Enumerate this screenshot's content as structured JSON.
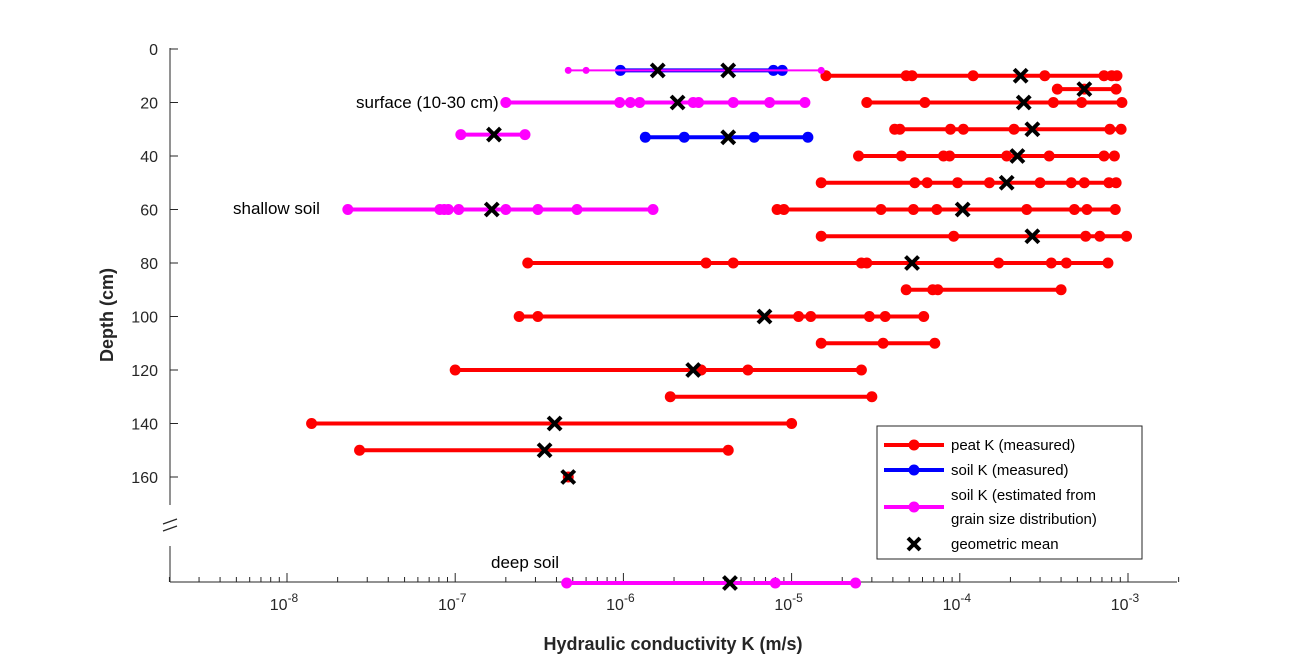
{
  "chart_data": {
    "type": "scatter",
    "xlabel": "Hydraulic conductivity K (m/s)",
    "ylabel": "Depth (cm)",
    "x_scale": "log",
    "xlim": [
      2e-09,
      0.002
    ],
    "ylim": [
      0,
      170
    ],
    "x_ticks": [
      1e-08,
      1e-07,
      1e-06,
      1e-05,
      0.0001,
      0.001
    ],
    "x_tick_labels": [
      {
        "base": "10",
        "exp": "-8"
      },
      {
        "base": "10",
        "exp": "-7"
      },
      {
        "base": "10",
        "exp": "-6"
      },
      {
        "base": "10",
        "exp": "-5"
      },
      {
        "base": "10",
        "exp": "-4"
      },
      {
        "base": "10",
        "exp": "-3"
      }
    ],
    "y_ticks": [
      0,
      20,
      40,
      60,
      80,
      100,
      120,
      140,
      160
    ],
    "y_tick_labels": [
      "0",
      "20",
      "40",
      "60",
      "80",
      "100",
      "120",
      "140",
      "160"
    ],
    "axis_break_symbol": "//",
    "legend_position": "bottom-right",
    "legend": [
      {
        "label": "peat K (measured)",
        "color": "#ff0000",
        "kind": "line"
      },
      {
        "label": "soil K (measured)",
        "color": "#0000ff",
        "kind": "line"
      },
      {
        "label": "soil K (estimated from",
        "label2": "grain size distribution)",
        "color": "#ff00ff",
        "kind": "line"
      },
      {
        "label": "geometric mean",
        "color": "#000000",
        "kind": "x"
      }
    ],
    "annotations": {
      "surface": "surface (10-30 cm)",
      "shallow": "shallow soil",
      "deep": "deep soil"
    },
    "series": [
      {
        "name": "peat K (measured)",
        "color": "#ff0000",
        "rows": [
          {
            "depth": 10,
            "points": [
              1.6e-05,
              4.8e-05,
              5.2e-05,
              0.00012,
              0.00032,
              0.00072,
              0.0008,
              0.00086
            ],
            "mean": 0.00023
          },
          {
            "depth": 15,
            "points": [
              0.00038,
              0.00055,
              0.00085
            ],
            "mean": 0.00055
          },
          {
            "depth": 20,
            "points": [
              2.8e-05,
              6.2e-05,
              0.00036,
              0.00053,
              0.00092
            ],
            "mean": 0.00024
          },
          {
            "depth": 30,
            "points": [
              4.1e-05,
              4.4e-05,
              8.8e-05,
              0.000105,
              0.00021,
              0.00078,
              0.00091
            ],
            "mean": 0.00027
          },
          {
            "depth": 40,
            "points": [
              2.5e-05,
              4.5e-05,
              8e-05,
              8.7e-05,
              0.00019,
              0.00034,
              0.00072,
              0.00083
            ],
            "mean": 0.00022
          },
          {
            "depth": 50,
            "points": [
              1.5e-05,
              5.4e-05,
              6.4e-05,
              9.7e-05,
              0.00015,
              0.0003,
              0.00046,
              0.00055,
              0.00077,
              0.00085
            ],
            "mean": 0.00019
          },
          {
            "depth": 60,
            "points": [
              8.2e-06,
              9e-06,
              3.4e-05,
              5.3e-05,
              7.3e-05,
              0.00025,
              0.00048,
              0.00057,
              0.00084
            ],
            "mean": 0.000104
          },
          {
            "depth": 70,
            "points": [
              1.5e-05,
              9.2e-05,
              0.00056,
              0.00068,
              0.00098
            ],
            "mean": 0.00027
          },
          {
            "depth": 80,
            "points": [
              2.7e-07,
              3.1e-06,
              4.5e-06,
              2.6e-05,
              2.8e-05,
              0.00017,
              0.00035,
              0.00043,
              0.00076
            ],
            "mean": 5.2e-05
          },
          {
            "depth": 90,
            "points": [
              4.8e-05,
              6.9e-05,
              7.4e-05,
              0.0004
            ],
            "mean": null
          },
          {
            "depth": 100,
            "points": [
              2.4e-07,
              3.1e-07,
              1.1e-05,
              1.3e-05,
              2.9e-05,
              3.6e-05,
              6.1e-05
            ],
            "mean": 6.9e-06
          },
          {
            "depth": 110,
            "points": [
              1.5e-05,
              3.5e-05,
              7.1e-05
            ],
            "mean": null
          },
          {
            "depth": 120,
            "points": [
              1e-07,
              2.9e-06,
              5.5e-06,
              2.6e-05
            ],
            "mean": 2.6e-06
          },
          {
            "depth": 130,
            "points": [
              1.9e-06,
              3e-05
            ],
            "mean": null
          },
          {
            "depth": 140,
            "points": [
              1.4e-08,
              1e-05
            ],
            "mean": 3.9e-07
          },
          {
            "depth": 150,
            "points": [
              2.7e-08,
              4.2e-06
            ],
            "mean": 3.4e-07
          },
          {
            "depth": 160,
            "points": [
              4.7e-07
            ],
            "mean": 4.7e-07
          }
        ]
      },
      {
        "name": "soil K (measured)",
        "color": "#0000ff",
        "rows": [
          {
            "depth": 8,
            "points": [
              9.6e-07,
              7.8e-06,
              8.8e-06
            ],
            "mean": 4.2e-06
          },
          {
            "depth": 33,
            "points": [
              1.35e-06,
              2.3e-06,
              6e-06,
              1.25e-05
            ],
            "mean": 4.2e-06
          }
        ]
      },
      {
        "name": "soil K (estimated from grain size distribution)",
        "color": "#ff00ff",
        "rows": [
          {
            "depth": 8,
            "points": [
              4.7e-07,
              6e-07,
              1.5e-05
            ],
            "mean": 1.6e-06,
            "thin": true
          },
          {
            "depth": 20,
            "points": [
              2e-07,
              9.5e-07,
              1.1e-06,
              1.25e-06,
              2.6e-06,
              2.8e-06,
              4.5e-06,
              7.4e-06,
              1.2e-05
            ],
            "mean": 2.1e-06
          },
          {
            "depth": 32,
            "points": [
              1.08e-07,
              2.6e-07
            ],
            "mean": 1.7e-07
          },
          {
            "depth": 60,
            "points": [
              2.3e-08,
              8.1e-08,
              8.6e-08,
              9.1e-08,
              1.05e-07,
              2e-07,
              3.1e-07,
              5.3e-07,
              1.5e-06
            ],
            "mean": 1.65e-07
          },
          {
            "depth": "deep soil",
            "points": [
              4.6e-07,
              8e-06,
              2.4e-05
            ],
            "mean": 4.3e-06
          }
        ]
      }
    ]
  }
}
